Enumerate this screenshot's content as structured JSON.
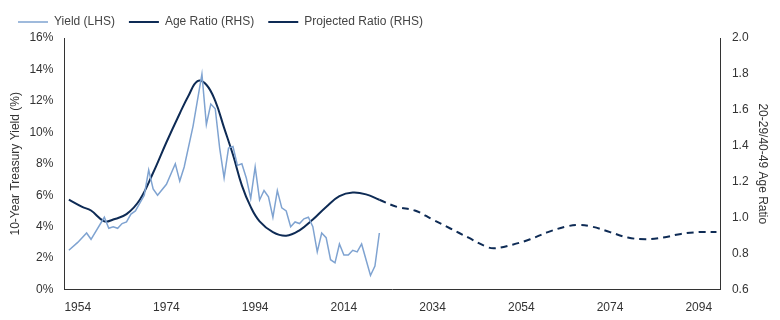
{
  "chart_data": {
    "type": "line",
    "y_label": "10-Year Treasury Yield (%)",
    "y2_label": "20-29/40-49 Age Ratio",
    "legend": "top-left",
    "grid": false,
    "xlim": [
      1951,
      2099
    ],
    "xticks": [
      1954,
      1974,
      1994,
      2014,
      2034,
      2054,
      2074,
      2094
    ],
    "ylim": [
      0,
      16
    ],
    "yticks": [
      {
        "value": 0,
        "label": "0%"
      },
      {
        "value": 2,
        "label": "2%"
      },
      {
        "value": 4,
        "label": "4%"
      },
      {
        "value": 6,
        "label": "6%"
      },
      {
        "value": 8,
        "label": "8%"
      },
      {
        "value": 10,
        "label": "10%"
      },
      {
        "value": 12,
        "label": "12%"
      },
      {
        "value": 14,
        "label": "14%"
      },
      {
        "value": 16,
        "label": "16%"
      }
    ],
    "y2lim": [
      0.6,
      2.0
    ],
    "y2ticks": [
      {
        "value": 0.6,
        "label": "0.6"
      },
      {
        "value": 0.8,
        "label": "0.8"
      },
      {
        "value": 1.0,
        "label": "1.0"
      },
      {
        "value": 1.2,
        "label": "1.2"
      },
      {
        "value": 1.4,
        "label": "1.4"
      },
      {
        "value": 1.6,
        "label": "1.6"
      },
      {
        "value": 1.8,
        "label": "1.8"
      },
      {
        "value": 2.0,
        "label": "2.0"
      }
    ],
    "series": [
      {
        "name": "Yield (LHS)",
        "color": "#7fa3d1",
        "axis": "y",
        "line_style": "solid",
        "x": [
          1952,
          1954,
          1956,
          1957,
          1960,
          1961,
          1962,
          1963,
          1964,
          1965,
          1966,
          1967,
          1969,
          1970,
          1971,
          1972,
          1974,
          1976,
          1977,
          1978,
          1980,
          1982,
          1983,
          1984,
          1985,
          1986,
          1987,
          1988,
          1989,
          1990,
          1991,
          1992,
          1993,
          1994,
          1995,
          1996,
          1997,
          1998,
          1999,
          2000,
          2001,
          2002,
          2003,
          2004,
          2005,
          2006,
          2007,
          2008,
          2009,
          2010,
          2011,
          2012,
          2013,
          2014,
          2015,
          2016,
          2017,
          2018,
          2019,
          2020,
          2021,
          2022
        ],
        "values": [
          2.5,
          3.0,
          3.6,
          3.2,
          4.6,
          3.9,
          4.0,
          3.9,
          4.2,
          4.3,
          4.8,
          5.0,
          6.0,
          7.6,
          6.4,
          6.0,
          6.7,
          8.0,
          6.9,
          7.8,
          10.4,
          13.7,
          10.5,
          11.8,
          11.5,
          9.0,
          7.1,
          9.0,
          9.1,
          7.9,
          8.0,
          7.1,
          5.8,
          7.8,
          5.7,
          6.3,
          5.9,
          4.6,
          6.3,
          5.2,
          5.0,
          4.0,
          4.3,
          4.2,
          4.5,
          4.6,
          4.0,
          2.4,
          3.6,
          3.3,
          1.9,
          1.7,
          2.9,
          2.2,
          2.2,
          2.5,
          2.4,
          2.9,
          1.9,
          0.9,
          1.5,
          3.6
        ]
      },
      {
        "name": "Age Ratio (RHS)",
        "color": "#0e2b55",
        "axis": "y2",
        "line_style": "solid",
        "x": [
          1952,
          1955,
          1957,
          1960,
          1962,
          1965,
          1968,
          1971,
          1974,
          1977,
          1979,
          1981,
          1983,
          1985,
          1987,
          1989,
          1991,
          1993,
          1995,
          1998,
          2001,
          2004,
          2007,
          2010,
          2013,
          2016,
          2019,
          2022
        ],
        "values": [
          1.1,
          1.06,
          1.04,
          0.98,
          0.99,
          1.02,
          1.1,
          1.25,
          1.42,
          1.58,
          1.68,
          1.76,
          1.74,
          1.65,
          1.5,
          1.35,
          1.18,
          1.06,
          0.98,
          0.92,
          0.9,
          0.93,
          0.99,
          1.06,
          1.12,
          1.14,
          1.13,
          1.1
        ]
      },
      {
        "name": "Projected Ratio (RHS)",
        "color": "#0e2b55",
        "axis": "y2",
        "line_style": "dashed",
        "x": [
          2022,
          2026,
          2030,
          2034,
          2038,
          2042,
          2046,
          2048,
          2052,
          2056,
          2060,
          2064,
          2067,
          2070,
          2074,
          2078,
          2082,
          2086,
          2090,
          2094,
          2098
        ],
        "values": [
          1.1,
          1.06,
          1.04,
          0.99,
          0.94,
          0.89,
          0.84,
          0.83,
          0.85,
          0.88,
          0.92,
          0.95,
          0.96,
          0.95,
          0.92,
          0.89,
          0.88,
          0.89,
          0.91,
          0.92,
          0.92
        ]
      }
    ]
  }
}
